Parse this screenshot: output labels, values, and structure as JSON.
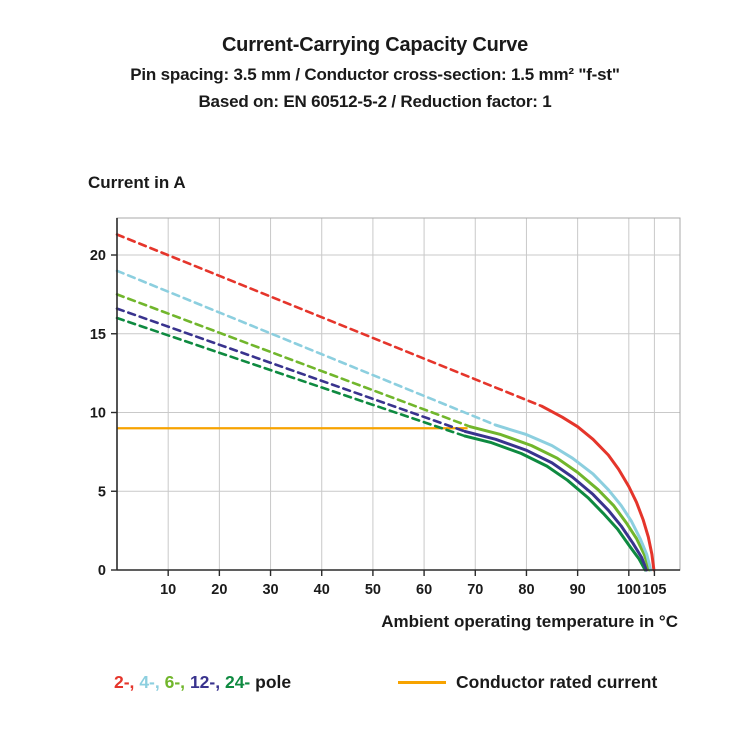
{
  "title": "Current-Carrying Capacity Curve",
  "subtitle1": "Pin spacing: 3.5 mm / Conductor cross-section: 1.5 mm² \"f-st\"",
  "subtitle2": "Based on: EN 60512-5-2 / Reduction factor: 1",
  "ylabel": "Current in A",
  "xlabel": "Ambient operating temperature in °C",
  "legend": {
    "poles": [
      {
        "label": "2-,",
        "color": "#e5352b"
      },
      {
        "label": "4-,",
        "color": "#8ccfdf"
      },
      {
        "label": "6-,",
        "color": "#71b62c"
      },
      {
        "label": "12-,",
        "color": "#39338e"
      },
      {
        "label": "24-",
        "color": "#0e8a40"
      }
    ],
    "poles_suffix": " pole",
    "rated": {
      "label": "Conductor rated current",
      "color": "#f7a300"
    }
  },
  "chart_data": {
    "type": "line",
    "title": "Current-Carrying Capacity Curve",
    "xlabel": "Ambient operating temperature in °C",
    "ylabel": "Current in A",
    "xlim": [
      0,
      110
    ],
    "ylim": [
      0,
      22.35
    ],
    "xticks": [
      10,
      20,
      30,
      40,
      50,
      60,
      70,
      80,
      90,
      100,
      105
    ],
    "yticks": [
      0,
      5,
      10,
      15,
      20
    ],
    "grid_x": [
      10,
      20,
      30,
      40,
      50,
      60,
      70,
      80,
      90,
      100,
      105
    ],
    "grid_y": [
      5,
      10,
      15,
      20
    ],
    "colors": {
      "grid": "#c9c9c9",
      "border": "#a8a8a8",
      "axis": "#2a2a2a"
    },
    "rated_line": {
      "y": 9,
      "x_start": 0,
      "x_end": 68.5,
      "color": "#f7a300",
      "label": "Conductor rated current"
    },
    "series": [
      {
        "name": "24-pole-derating",
        "color": "#0e8a40",
        "dash": true,
        "points": [
          [
            0,
            16.0
          ],
          [
            68,
            8.5
          ]
        ]
      },
      {
        "name": "12-pole-derating",
        "color": "#39338e",
        "dash": true,
        "points": [
          [
            0,
            16.6
          ],
          [
            68,
            8.8
          ]
        ]
      },
      {
        "name": "6-pole-derating",
        "color": "#71b62c",
        "dash": true,
        "points": [
          [
            0,
            17.5
          ],
          [
            69,
            9.1
          ]
        ]
      },
      {
        "name": "4-pole-derating",
        "color": "#8ccfdf",
        "dash": true,
        "points": [
          [
            0,
            19.0
          ],
          [
            74,
            9.2
          ]
        ]
      },
      {
        "name": "2-pole-derating",
        "color": "#e5352b",
        "dash": true,
        "points": [
          [
            0,
            21.3
          ],
          [
            83,
            10.4
          ]
        ]
      },
      {
        "name": "24-pole-limit",
        "color": "#0e8a40",
        "dash": false,
        "points": [
          [
            68,
            8.5
          ],
          [
            73,
            8.1
          ],
          [
            79,
            7.4
          ],
          [
            84,
            6.6
          ],
          [
            88,
            5.7
          ],
          [
            92,
            4.6
          ],
          [
            95,
            3.6
          ],
          [
            97.8,
            2.6
          ],
          [
            100.2,
            1.5
          ],
          [
            102.0,
            0.7
          ],
          [
            103.2,
            0
          ]
        ]
      },
      {
        "name": "12-pole-limit",
        "color": "#39338e",
        "dash": false,
        "points": [
          [
            68,
            8.8
          ],
          [
            74,
            8.3
          ],
          [
            80,
            7.6
          ],
          [
            85,
            6.8
          ],
          [
            89,
            5.9
          ],
          [
            93,
            4.8
          ],
          [
            96,
            3.8
          ],
          [
            98.5,
            2.8
          ],
          [
            100.8,
            1.7
          ],
          [
            102.5,
            0.8
          ],
          [
            103.5,
            0
          ]
        ]
      },
      {
        "name": "6-pole-limit",
        "color": "#71b62c",
        "dash": false,
        "points": [
          [
            69,
            9.1
          ],
          [
            75,
            8.6
          ],
          [
            81,
            7.9
          ],
          [
            86,
            7.1
          ],
          [
            90,
            6.2
          ],
          [
            94,
            5.1
          ],
          [
            97,
            4.1
          ],
          [
            99.5,
            3.0
          ],
          [
            101.5,
            2.0
          ],
          [
            103.0,
            1.0
          ],
          [
            104.0,
            0
          ]
        ]
      },
      {
        "name": "4-pole-limit",
        "color": "#8ccfdf",
        "dash": false,
        "points": [
          [
            74,
            9.2
          ],
          [
            80,
            8.6
          ],
          [
            85,
            7.9
          ],
          [
            89,
            7.1
          ],
          [
            93,
            6.1
          ],
          [
            96,
            5.1
          ],
          [
            98.5,
            4.1
          ],
          [
            100.5,
            3.1
          ],
          [
            102.2,
            2.0
          ],
          [
            103.5,
            1.0
          ],
          [
            104.3,
            0
          ]
        ]
      },
      {
        "name": "2-pole-limit",
        "color": "#e5352b",
        "dash": false,
        "points": [
          [
            83,
            10.4
          ],
          [
            87,
            9.7
          ],
          [
            90,
            9.1
          ],
          [
            93,
            8.3
          ],
          [
            96,
            7.3
          ],
          [
            98,
            6.4
          ],
          [
            100,
            5.3
          ],
          [
            101.5,
            4.3
          ],
          [
            102.8,
            3.2
          ],
          [
            103.8,
            2.1
          ],
          [
            104.5,
            1.0
          ],
          [
            104.9,
            0
          ]
        ]
      }
    ]
  }
}
